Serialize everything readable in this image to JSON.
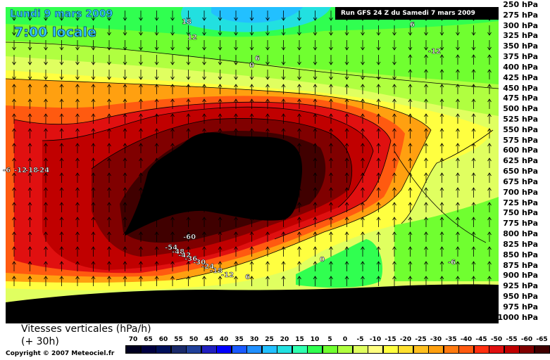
{
  "chart_data": {
    "type": "heatmap",
    "date_label": "Lundi 9 mars 2009",
    "time_label": "7:00 locale",
    "run_label": "Run GFS 24 Z du Samedi 7 mars 2009",
    "title": "Vitesses verticales (hPa/h)",
    "subtitle": "(+ 30h)",
    "copyright": "Copyright © 2007 Meteociel.fr",
    "pressure_levels": [
      "250 hPa",
      "275 hPa",
      "300 hPa",
      "325 hPa",
      "350 hPa",
      "375 hPa",
      "400 hPa",
      "425 hPa",
      "450 hPa",
      "475 hPa",
      "500 hPa",
      "525 hPa",
      "550 hPa",
      "575 hPa",
      "600 hPa",
      "625 hPa",
      "650 hPa",
      "675 hPa",
      "700 hPa",
      "725 hPa",
      "750 hPa",
      "775 hPa",
      "800 hPa",
      "825 hPa",
      "850 hPa",
      "875 hPa",
      "900 hPa",
      "925 hPa",
      "950 hPa",
      "975 hPa",
      "1000 hPa"
    ],
    "legend": {
      "values": [
        "70",
        "65",
        "60",
        "55",
        "50",
        "45",
        "40",
        "35",
        "30",
        "25",
        "20",
        "15",
        "10",
        "5",
        "0",
        "-5",
        "-10",
        "-15",
        "-20",
        "-25",
        "-30",
        "-35",
        "-40",
        "-45",
        "-50",
        "-55",
        "-60",
        "-65"
      ],
      "colors": [
        "#000020",
        "#000040",
        "#00105a",
        "#1a2a6a",
        "#20409a",
        "#2020c0",
        "#0000ff",
        "#1a5aff",
        "#2090ff",
        "#22c0ff",
        "#22e0e0",
        "#30ffb0",
        "#30ff50",
        "#70ff30",
        "#b0ff40",
        "#e0ff60",
        "#ffff80",
        "#ffff40",
        "#ffe030",
        "#ffc020",
        "#ffa010",
        "#ff7a10",
        "#ff5a10",
        "#ff3010",
        "#e01010",
        "#c00000",
        "#800000",
        "#400000"
      ]
    },
    "contour_labels": [
      "18",
      "12",
      "6",
      "0",
      "-6",
      "-12",
      "-18",
      "-24",
      "-30",
      "-36",
      "-42",
      "-48",
      "-54",
      "-60"
    ]
  }
}
